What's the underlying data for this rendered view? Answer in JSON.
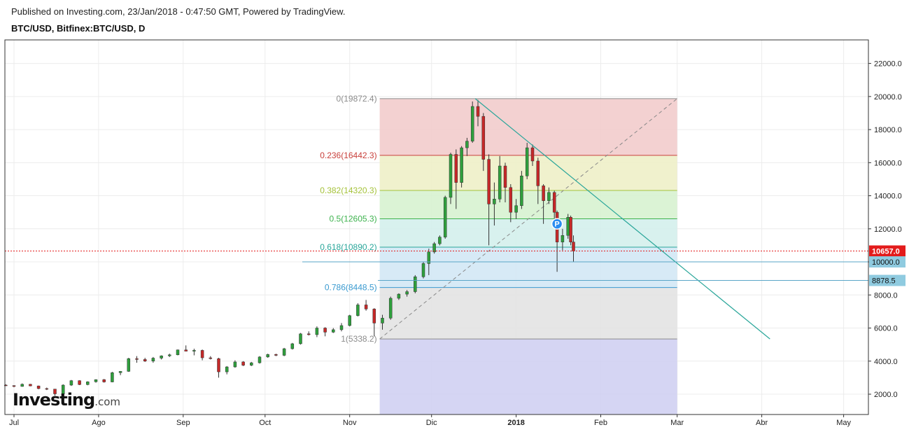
{
  "header": {
    "published": "Published on Investing.com, 23/Jan/2018 - 0:47:50 GMT, Powered by TradingView.",
    "symbol": "BTC/USD, Bitfinex:BTC/USD, D"
  },
  "logo": {
    "main": "Investing",
    "sub": ".com"
  },
  "chart_data": {
    "type": "candlestick",
    "y_axis": {
      "ticks": [
        "22000.0",
        "20000.0",
        "18000.0",
        "16000.0",
        "14000.0",
        "12000.0",
        "10000.0",
        "8000.0",
        "6000.0",
        "4000.0",
        "2000.0"
      ],
      "tick_values": [
        22000,
        20000,
        18000,
        16000,
        14000,
        12000,
        10000,
        8000,
        6000,
        4000,
        2000
      ]
    },
    "x_axis": {
      "labels": [
        "Jul",
        "Ago",
        "Sep",
        "Oct",
        "Nov",
        "Dic",
        "2018",
        "Feb",
        "Mar",
        "Abr",
        "May"
      ],
      "dates": [
        "2017-07-01",
        "2017-08-01",
        "2017-09-01",
        "2017-10-01",
        "2017-11-01",
        "2017-12-01",
        "2018-01-01",
        "2018-02-01",
        "2018-03-01",
        "2018-04-01",
        "2018-05-01"
      ]
    },
    "price_labels": [
      {
        "text": "10657.0",
        "value": 10657.0,
        "style": "last-price",
        "color": "#e31c1c"
      },
      {
        "text": "10000.0",
        "value": 10000.0,
        "style": "horizontal-line",
        "color": "#5aa6c7"
      },
      {
        "text": "8878.5",
        "value": 8878.5,
        "style": "horizontal-line",
        "color": "#5aa6c7"
      }
    ],
    "fibonacci": {
      "start": {
        "date": "2017-11-12",
        "price": 5338.2
      },
      "end": {
        "date": "2018-03-01",
        "price": 19872.4
      },
      "levels": [
        {
          "label": "0(19872.4)",
          "value": 19872.4,
          "color": "#8c8c8c",
          "fill": "#f2cccc"
        },
        {
          "label": "0.236(16442.3)",
          "value": 16442.3,
          "color": "#c9413c",
          "fill": "#eef0c8"
        },
        {
          "label": "0.382(14320.3)",
          "value": 14320.3,
          "color": "#a5c23a",
          "fill": "#d7f2d0"
        },
        {
          "label": "0.5(12605.3)",
          "value": 12605.3,
          "color": "#3fb34f",
          "fill": "#d4f0ec"
        },
        {
          "label": "0.618(10890.2)",
          "value": 10890.2,
          "color": "#2aa69a",
          "fill": "#d3e8f5"
        },
        {
          "label": "0.786(8448.5)",
          "value": 8448.5,
          "color": "#3a9ad0",
          "fill": "#e3e3e3"
        },
        {
          "label": "1(5338.2)",
          "value": 5338.2,
          "color": "#8c8c8c",
          "fill": "#d0d0f2"
        }
      ]
    },
    "trend_line": {
      "from": {
        "date": "2017-12-17",
        "price": 19872.4
      },
      "to": {
        "date": "2018-04-04",
        "price": 5338.2
      },
      "color": "#2aa69a"
    },
    "marker": {
      "text": "P",
      "date": "2018-01-16",
      "price": 12300,
      "color": "#2a8df0"
    },
    "colors": {
      "up": "#2e9f3c",
      "down": "#c62828"
    },
    "candles": [
      [
        "2017-06-28",
        2550,
        2600,
        2500,
        2520
      ],
      [
        "2017-07-01",
        2520,
        2540,
        2420,
        2470
      ],
      [
        "2017-07-04",
        2470,
        2650,
        2450,
        2600
      ],
      [
        "2017-07-07",
        2600,
        2620,
        2480,
        2500
      ],
      [
        "2017-07-10",
        2500,
        2520,
        2300,
        2340
      ],
      [
        "2017-07-13",
        2340,
        2400,
        2250,
        2310
      ],
      [
        "2017-07-16",
        2310,
        2320,
        1900,
        2020
      ],
      [
        "2017-07-19",
        2020,
        2600,
        2000,
        2550
      ],
      [
        "2017-07-22",
        2550,
        2860,
        2500,
        2820
      ],
      [
        "2017-07-25",
        2820,
        2840,
        2550,
        2580
      ],
      [
        "2017-07-28",
        2580,
        2780,
        2540,
        2750
      ],
      [
        "2017-07-31",
        2750,
        2900,
        2700,
        2880
      ],
      [
        "2017-08-03",
        2880,
        2920,
        2700,
        2740
      ],
      [
        "2017-08-06",
        2740,
        3350,
        2720,
        3300
      ],
      [
        "2017-08-09",
        3300,
        3400,
        3150,
        3380
      ],
      [
        "2017-08-12",
        3380,
        4200,
        3350,
        4150
      ],
      [
        "2017-08-15",
        4150,
        4300,
        3900,
        4100
      ],
      [
        "2017-08-18",
        4100,
        4200,
        3950,
        4000
      ],
      [
        "2017-08-21",
        4000,
        4250,
        3900,
        4180
      ],
      [
        "2017-08-24",
        4180,
        4350,
        4100,
        4320
      ],
      [
        "2017-08-27",
        4320,
        4450,
        4250,
        4380
      ],
      [
        "2017-08-30",
        4380,
        4700,
        4350,
        4680
      ],
      [
        "2017-09-02",
        4680,
        4950,
        4600,
        4600
      ],
      [
        "2017-09-05",
        4600,
        4750,
        4350,
        4650
      ],
      [
        "2017-09-08",
        4650,
        4700,
        4050,
        4200
      ],
      [
        "2017-09-11",
        4200,
        4300,
        4100,
        4150
      ],
      [
        "2017-09-14",
        4150,
        4200,
        3000,
        3350
      ],
      [
        "2017-09-17",
        3350,
        3700,
        3200,
        3650
      ],
      [
        "2017-09-20",
        3650,
        4050,
        3600,
        3950
      ],
      [
        "2017-09-23",
        3950,
        4000,
        3700,
        3750
      ],
      [
        "2017-09-26",
        3750,
        3950,
        3700,
        3900
      ],
      [
        "2017-09-29",
        3900,
        4300,
        3850,
        4250
      ],
      [
        "2017-10-02",
        4250,
        4450,
        4200,
        4400
      ],
      [
        "2017-10-05",
        4400,
        4450,
        4300,
        4350
      ],
      [
        "2017-10-08",
        4350,
        4800,
        4300,
        4750
      ],
      [
        "2017-10-11",
        4750,
        5100,
        4700,
        5050
      ],
      [
        "2017-10-14",
        5050,
        5700,
        5000,
        5650
      ],
      [
        "2017-10-17",
        5650,
        5800,
        5550,
        5600
      ],
      [
        "2017-10-20",
        5600,
        6100,
        5450,
        6000
      ],
      [
        "2017-10-23",
        6000,
        6050,
        5500,
        5750
      ],
      [
        "2017-10-26",
        5750,
        6000,
        5700,
        5900
      ],
      [
        "2017-10-29",
        5900,
        6300,
        5800,
        6150
      ],
      [
        "2017-11-01",
        6150,
        6800,
        6100,
        6750
      ],
      [
        "2017-11-04",
        6750,
        7500,
        6700,
        7400
      ],
      [
        "2017-11-07",
        7400,
        7700,
        7050,
        7150
      ],
      [
        "2017-11-10",
        7150,
        7200,
        5500,
        6300
      ],
      [
        "2017-11-13",
        6300,
        6800,
        5900,
        6600
      ],
      [
        "2017-11-16",
        6600,
        7900,
        6500,
        7800
      ],
      [
        "2017-11-19",
        7800,
        8100,
        7700,
        8050
      ],
      [
        "2017-11-22",
        8050,
        8300,
        7900,
        8200
      ],
      [
        "2017-11-25",
        8200,
        9200,
        8100,
        9100
      ],
      [
        "2017-11-28",
        9100,
        10000,
        9000,
        9900
      ],
      [
        "2017-11-30",
        9900,
        10800,
        9200,
        10600
      ],
      [
        "2017-12-02",
        10600,
        11200,
        10500,
        11100
      ],
      [
        "2017-12-04",
        11100,
        11600,
        11000,
        11500
      ],
      [
        "2017-12-06",
        11500,
        14000,
        11400,
        13900
      ],
      [
        "2017-12-08",
        13900,
        16600,
        13500,
        16500
      ],
      [
        "2017-12-10",
        16500,
        16800,
        13200,
        14800
      ],
      [
        "2017-12-12",
        14800,
        17000,
        14500,
        16900
      ],
      [
        "2017-12-14",
        16900,
        17500,
        16400,
        17300
      ],
      [
        "2017-12-16",
        17300,
        19700,
        17200,
        19400
      ],
      [
        "2017-12-18",
        19400,
        19800,
        18200,
        18800
      ],
      [
        "2017-12-20",
        18800,
        19000,
        15500,
        16200
      ],
      [
        "2017-12-22",
        16200,
        16500,
        11000,
        13500
      ],
      [
        "2017-12-24",
        13500,
        14800,
        12200,
        13800
      ],
      [
        "2017-12-26",
        13800,
        16400,
        13600,
        15800
      ],
      [
        "2017-12-28",
        15800,
        16000,
        13600,
        14500
      ],
      [
        "2017-12-30",
        14500,
        14700,
        12400,
        13000
      ],
      [
        "2018-01-01",
        13000,
        13800,
        12600,
        13400
      ],
      [
        "2018-01-03",
        13400,
        15500,
        13200,
        15200
      ],
      [
        "2018-01-05",
        15200,
        17200,
        15000,
        16900
      ],
      [
        "2018-01-07",
        16900,
        17100,
        15800,
        16100
      ],
      [
        "2018-01-09",
        16100,
        16300,
        13500,
        14600
      ],
      [
        "2018-01-11",
        14600,
        14700,
        12300,
        13700
      ],
      [
        "2018-01-13",
        13700,
        14500,
        13500,
        14200
      ],
      [
        "2018-01-15",
        14200,
        14300,
        12600,
        13000
      ],
      [
        "2018-01-16",
        13000,
        13100,
        9400,
        11200
      ],
      [
        "2018-01-18",
        11200,
        12000,
        10700,
        11600
      ],
      [
        "2018-01-20",
        11600,
        12900,
        11400,
        12700
      ],
      [
        "2018-01-21",
        12700,
        12800,
        11000,
        11200
      ],
      [
        "2018-01-22",
        11200,
        11600,
        10000,
        10657
      ]
    ]
  }
}
